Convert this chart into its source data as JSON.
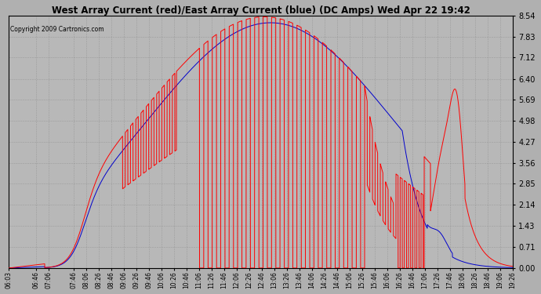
{
  "title": "West Array Current (red)/East Array Current (blue) (DC Amps) Wed Apr 22 19:42",
  "copyright": "Copyright 2009 Cartronics.com",
  "yticks": [
    0.0,
    0.71,
    1.43,
    2.14,
    2.85,
    3.56,
    4.27,
    4.98,
    5.69,
    6.4,
    7.12,
    7.83,
    8.54
  ],
  "ymax": 8.54,
  "ymin": 0.0,
  "bg_color": "#b0b0b0",
  "plot_bg_color": "#b8b8b8",
  "red_color": "#ff0000",
  "blue_color": "#0000cc",
  "xtick_labels": [
    "06:03",
    "06:46",
    "07:06",
    "07:46",
    "08:06",
    "08:26",
    "08:46",
    "09:06",
    "09:26",
    "09:46",
    "10:06",
    "10:26",
    "10:46",
    "11:06",
    "11:26",
    "11:46",
    "12:06",
    "12:26",
    "12:46",
    "13:06",
    "13:26",
    "13:46",
    "14:06",
    "14:26",
    "14:46",
    "15:06",
    "15:26",
    "15:46",
    "16:06",
    "16:26",
    "16:46",
    "17:06",
    "17:26",
    "17:46",
    "18:06",
    "18:26",
    "18:46",
    "19:06",
    "19:26"
  ]
}
